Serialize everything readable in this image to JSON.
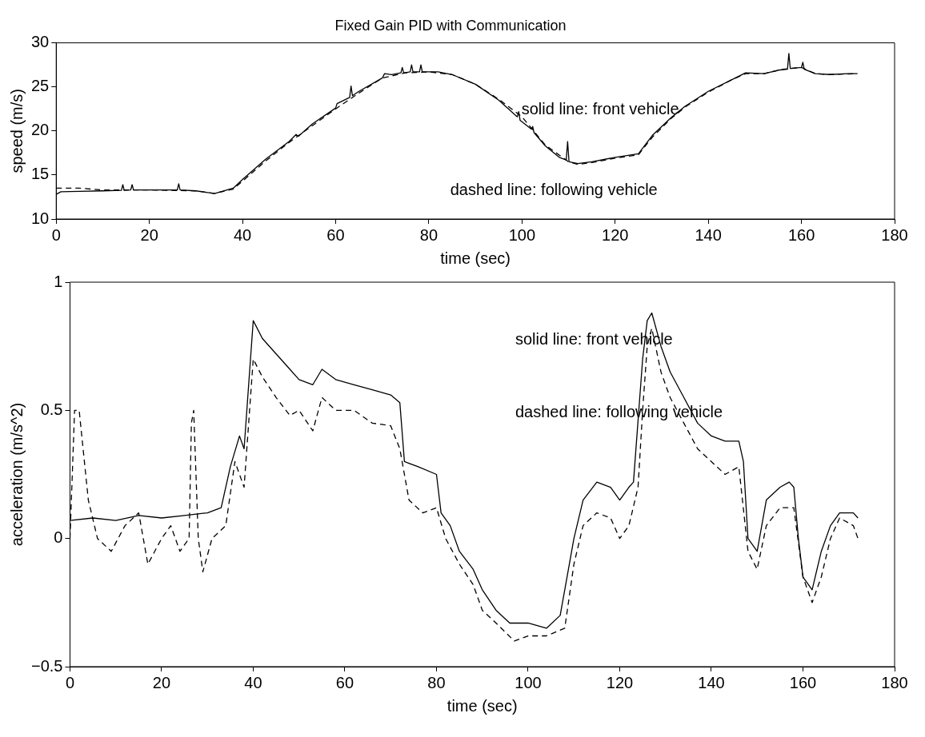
{
  "chart_data": [
    {
      "type": "line",
      "title": "Fixed Gain PID with Communication",
      "xlabel": "time (sec)",
      "ylabel": "speed (m/s)",
      "xlim": [
        0,
        180
      ],
      "xticks": [
        0,
        20,
        40,
        60,
        80,
        100,
        120,
        140,
        160,
        180
      ],
      "ylim": [
        10,
        30
      ],
      "yticks": [
        10,
        15,
        20,
        25,
        30
      ],
      "annotations": [
        "solid line: front vehicle",
        "dashed line: following vehicle"
      ],
      "series": [
        {
          "color": "#000000",
          "line_style": "solid",
          "x": [
            0,
            1,
            5,
            10,
            14,
            14.3,
            14.6,
            16,
            16.3,
            16.6,
            20,
            26,
            26.3,
            26.6,
            30,
            34,
            38,
            40,
            45,
            50,
            51.5,
            52,
            55,
            60,
            60.3,
            63,
            63.3,
            63.6,
            65,
            70,
            70.5,
            72,
            74,
            74.3,
            74.6,
            76,
            76.3,
            76.6,
            78,
            78.3,
            78.6,
            82,
            85,
            90,
            95,
            99,
            99.3,
            99.6,
            102,
            102.3,
            102.6,
            105,
            108,
            109.5,
            109.8,
            110.1,
            112,
            115,
            120,
            125,
            128,
            132,
            135,
            140,
            145,
            148,
            152,
            155,
            157,
            157.3,
            157.6,
            160,
            160.3,
            160.6,
            163,
            166,
            170,
            172
          ],
          "values": [
            12.8,
            13.1,
            13.15,
            13.2,
            13.25,
            13.9,
            13.25,
            13.3,
            13.9,
            13.3,
            13.3,
            13.3,
            14.0,
            13.3,
            13.2,
            12.9,
            13.5,
            14.5,
            16.8,
            18.8,
            19.6,
            19.4,
            20.8,
            22.6,
            23.1,
            23.8,
            25.1,
            24.0,
            24.5,
            26.0,
            26.5,
            26.4,
            26.6,
            27.2,
            26.6,
            26.7,
            27.5,
            26.7,
            26.7,
            27.5,
            26.7,
            26.7,
            26.4,
            25.3,
            23.5,
            21.6,
            22.2,
            21.2,
            20.2,
            20.5,
            19.8,
            18.3,
            17.0,
            16.7,
            18.8,
            16.5,
            16.3,
            16.5,
            17.0,
            17.4,
            19.5,
            21.5,
            22.8,
            24.5,
            25.8,
            26.6,
            26.5,
            26.9,
            27.0,
            28.8,
            27.1,
            27.2,
            27.8,
            27.0,
            26.5,
            26.4,
            26.5,
            26.5
          ]
        },
        {
          "color": "#000000",
          "line_style": "dashed",
          "x": [
            0,
            5,
            10,
            20,
            30,
            34,
            38,
            40,
            45,
            50,
            55,
            60,
            65,
            70,
            75,
            80,
            85,
            90,
            95,
            100,
            105,
            110,
            112,
            115,
            120,
            125,
            128,
            132,
            135,
            140,
            145,
            148,
            152,
            156,
            160,
            163,
            166,
            172
          ],
          "values": [
            13.5,
            13.5,
            13.3,
            13.3,
            13.2,
            12.9,
            13.4,
            14.3,
            16.6,
            18.7,
            20.6,
            22.5,
            24.3,
            26.0,
            26.6,
            26.7,
            26.4,
            25.3,
            23.6,
            21.6,
            18.4,
            16.5,
            16.2,
            16.4,
            16.9,
            17.3,
            19.3,
            21.4,
            22.7,
            24.4,
            25.8,
            26.5,
            26.5,
            27.0,
            27.2,
            26.5,
            26.4,
            26.5
          ]
        }
      ]
    },
    {
      "type": "line",
      "xlabel": "time (sec)",
      "ylabel": "acceleration (m/s^2)",
      "xlim": [
        0,
        180
      ],
      "xticks": [
        0,
        20,
        40,
        60,
        80,
        100,
        120,
        140,
        160,
        180
      ],
      "ylim": [
        -0.5,
        1
      ],
      "yticks": [
        {
          "value": -0.5,
          "label": "−0.5"
        },
        0,
        0.5,
        1
      ],
      "annotations": [
        "solid line: front vehicle",
        "dashed line: following vehicle"
      ],
      "series": [
        {
          "color": "#000000",
          "line_style": "solid",
          "x": [
            0,
            5,
            10,
            15,
            20,
            25,
            30,
            33,
            35,
            37,
            38,
            39,
            40,
            42,
            45,
            48,
            50,
            53,
            55,
            58,
            62,
            66,
            70,
            72,
            73,
            76,
            80,
            81,
            83,
            85,
            88,
            90,
            93,
            96,
            100,
            104,
            107,
            108,
            110,
            112,
            115,
            118,
            120,
            122,
            123,
            125,
            126,
            127,
            129,
            131,
            134,
            137,
            140,
            143,
            146,
            147,
            148,
            150,
            152,
            155,
            157,
            158,
            159,
            160,
            162,
            164,
            166,
            168,
            171,
            172
          ],
          "values": [
            0.07,
            0.08,
            0.07,
            0.09,
            0.08,
            0.09,
            0.1,
            0.12,
            0.28,
            0.4,
            0.35,
            0.6,
            0.85,
            0.78,
            0.72,
            0.66,
            0.62,
            0.6,
            0.66,
            0.62,
            0.6,
            0.58,
            0.56,
            0.53,
            0.3,
            0.28,
            0.25,
            0.1,
            0.05,
            -0.05,
            -0.12,
            -0.2,
            -0.28,
            -0.33,
            -0.33,
            -0.35,
            -0.3,
            -0.2,
            0.0,
            0.15,
            0.22,
            0.2,
            0.15,
            0.2,
            0.22,
            0.7,
            0.85,
            0.88,
            0.75,
            0.65,
            0.55,
            0.45,
            0.4,
            0.38,
            0.38,
            0.3,
            0.0,
            -0.05,
            0.15,
            0.2,
            0.22,
            0.2,
            0.0,
            -0.15,
            -0.2,
            -0.05,
            0.05,
            0.1,
            0.1,
            0.08
          ]
        },
        {
          "color": "#000000",
          "line_style": "dashed",
          "x": [
            0,
            1,
            2,
            4,
            6,
            9,
            12,
            15,
            17,
            20,
            22,
            24,
            26,
            26.5,
            27,
            28,
            29,
            31,
            34,
            36,
            38,
            40,
            42,
            45,
            48,
            50,
            53,
            55,
            58,
            62,
            66,
            70,
            72,
            74,
            77,
            80,
            82,
            85,
            88,
            90,
            93,
            97,
            100,
            104,
            108,
            110,
            112,
            115,
            118,
            120,
            122,
            124,
            125,
            126,
            127,
            129,
            131,
            134,
            137,
            140,
            143,
            146,
            148,
            150,
            152,
            155,
            158,
            160,
            162,
            164,
            166,
            168,
            171,
            172
          ],
          "values": [
            0.0,
            0.5,
            0.5,
            0.15,
            0.0,
            -0.05,
            0.05,
            0.1,
            -0.1,
            0.0,
            0.05,
            -0.05,
            0.0,
            0.45,
            0.5,
            0.0,
            -0.13,
            0.0,
            0.05,
            0.3,
            0.2,
            0.7,
            0.63,
            0.55,
            0.48,
            0.5,
            0.42,
            0.55,
            0.5,
            0.5,
            0.45,
            0.44,
            0.35,
            0.15,
            0.1,
            0.12,
            0.0,
            -0.1,
            -0.18,
            -0.28,
            -0.33,
            -0.4,
            -0.38,
            -0.38,
            -0.35,
            -0.1,
            0.05,
            0.1,
            0.08,
            0.0,
            0.05,
            0.2,
            0.5,
            0.75,
            0.82,
            0.65,
            0.55,
            0.45,
            0.35,
            0.3,
            0.25,
            0.28,
            -0.05,
            -0.12,
            0.05,
            0.12,
            0.12,
            -0.15,
            -0.25,
            -0.15,
            0.0,
            0.08,
            0.05,
            0.0
          ]
        }
      ]
    }
  ]
}
